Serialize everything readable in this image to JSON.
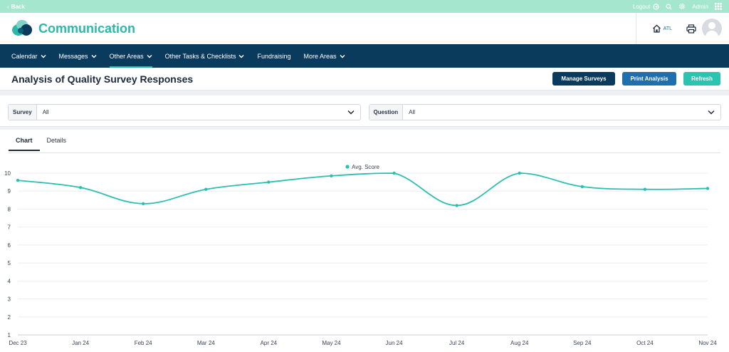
{
  "topbar": {
    "back_label": "Back",
    "logout_label": "Logout",
    "user_label": "Admin"
  },
  "brand": {
    "title": "Communication",
    "location": "ATL"
  },
  "nav": {
    "items": [
      {
        "label": "Calendar",
        "dropdown": true
      },
      {
        "label": "Messages",
        "dropdown": true
      },
      {
        "label": "Other Areas",
        "dropdown": true,
        "active": true
      },
      {
        "label": "Other Tasks & Checklists",
        "dropdown": true
      },
      {
        "label": "Fundraising",
        "dropdown": false
      },
      {
        "label": "More Areas",
        "dropdown": true
      }
    ]
  },
  "page": {
    "title": "Analysis of Quality Survey Responses",
    "manage_label": "Manage Surveys",
    "print_label": "Print Analysis",
    "refresh_label": "Refresh"
  },
  "filters": {
    "survey_label": "Survey",
    "survey_value": "All",
    "question_label": "Question",
    "question_value": "All"
  },
  "tabs": {
    "chart_label": "Chart",
    "details_label": "Details"
  },
  "colors": {
    "accent": "#2cb7a9",
    "nav_bg": "#0a3a5c",
    "line": "#2cbfb0"
  },
  "chart_data": {
    "type": "line",
    "categories": [
      "Dec 23",
      "Jan 24",
      "Feb 24",
      "Mar 24",
      "Apr 24",
      "May 24",
      "Jun 24",
      "Jul 24",
      "Aug 24",
      "Sep 24",
      "Oct 24",
      "Nov 24"
    ],
    "series": [
      {
        "name": "Avg. Score",
        "values": [
          9.6,
          9.2,
          8.3,
          9.1,
          9.5,
          9.85,
          10.0,
          8.2,
          10.0,
          9.25,
          9.1,
          9.15
        ]
      }
    ],
    "yticks": [
      1,
      2,
      3,
      4,
      5,
      6,
      7,
      8,
      9,
      10
    ],
    "ylim": [
      1,
      10
    ],
    "grid": true,
    "legend": "top-center"
  }
}
